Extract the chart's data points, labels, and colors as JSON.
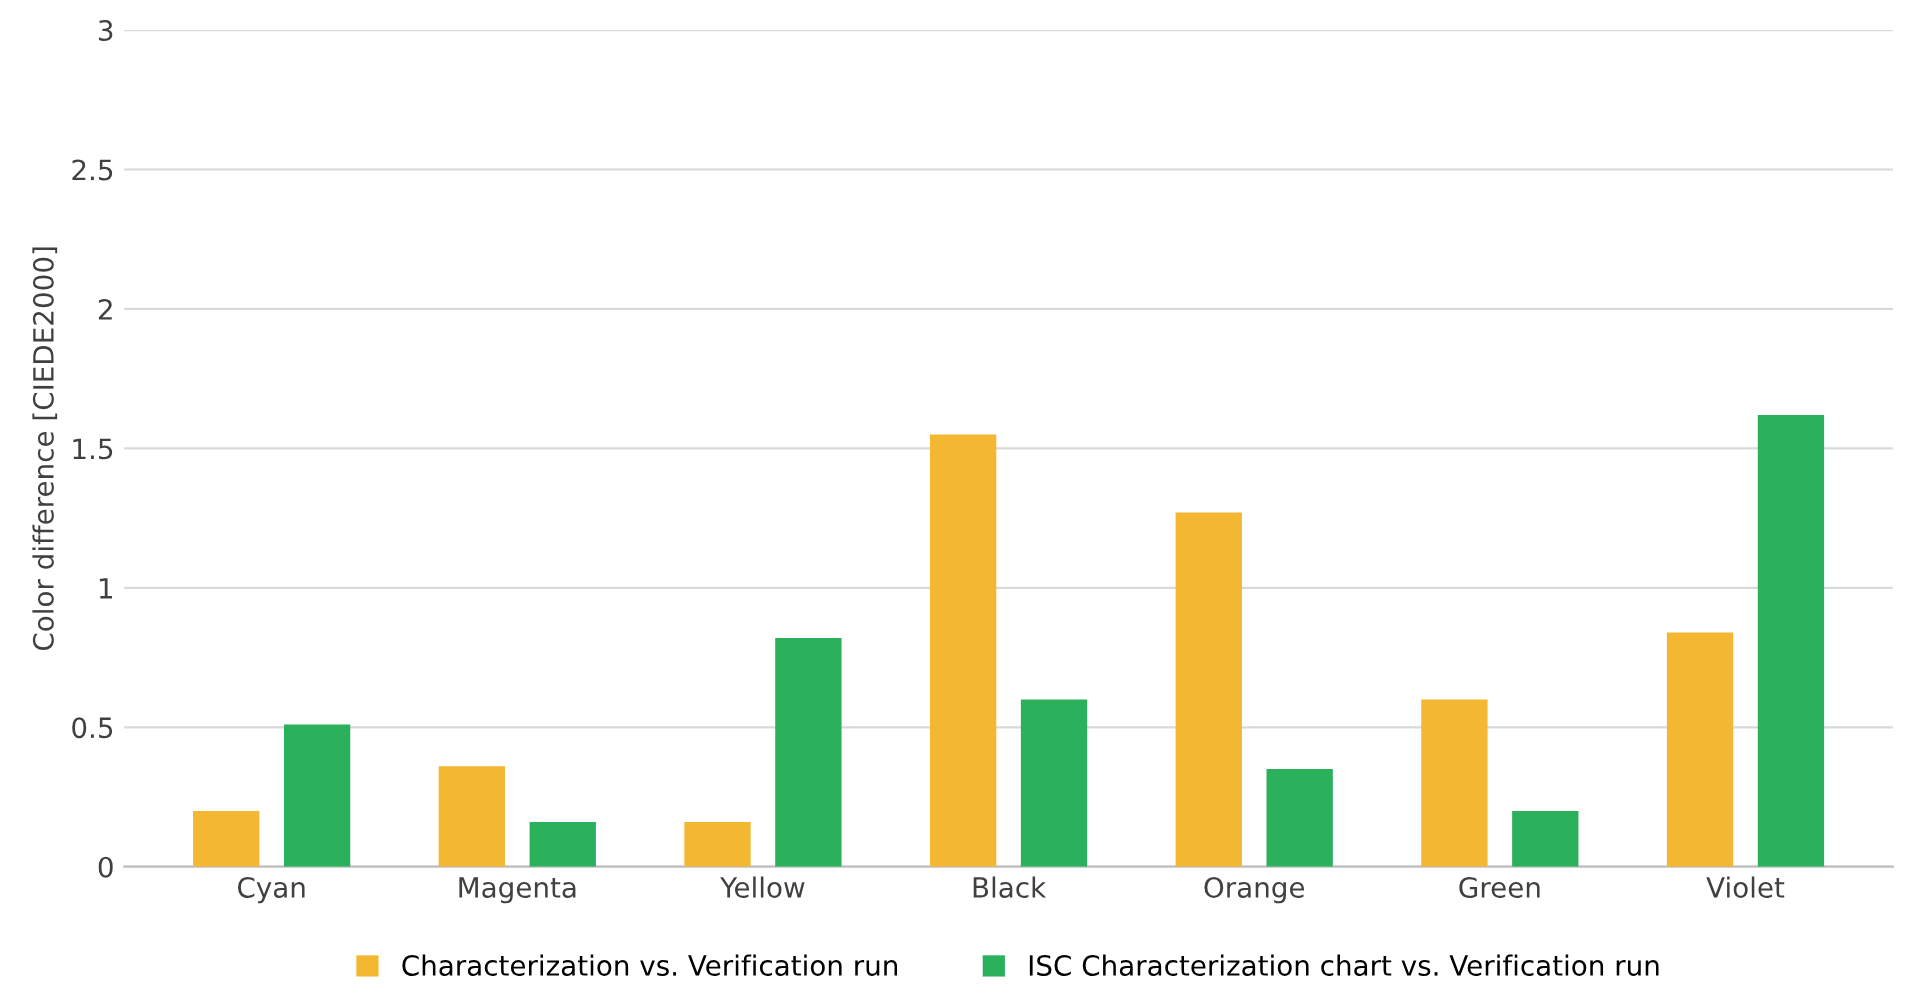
{
  "chart_data": {
    "type": "bar",
    "ylabel": "Color difference [CIEDE2000]",
    "categories": [
      "Cyan",
      "Magenta",
      "Yellow",
      "Black",
      "Orange",
      "Green",
      "Violet"
    ],
    "series": [
      {
        "name": "Characterization vs. Verification run",
        "color": "#f4b731",
        "values": [
          0.2,
          0.36,
          0.16,
          1.55,
          1.27,
          0.6,
          0.84
        ]
      },
      {
        "name": "ISC Characterization chart vs. Verification run",
        "color": "#2bb05c",
        "values": [
          0.51,
          0.16,
          0.82,
          0.6,
          0.35,
          0.2,
          1.62
        ]
      }
    ],
    "ylim": [
      0,
      3
    ],
    "yticks": [
      0,
      0.5,
      1,
      1.5,
      2,
      2.5,
      3
    ],
    "grid": "y",
    "legend": "bottom"
  }
}
